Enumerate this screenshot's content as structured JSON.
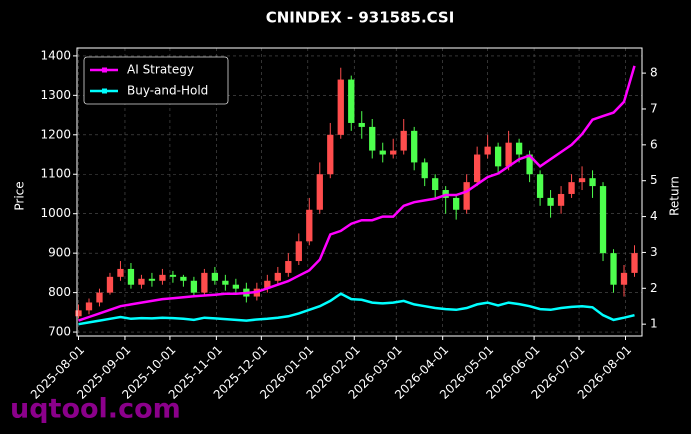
{
  "chart_data": {
    "type": "candlestick",
    "title": "CNINDEX - 931585.CSI",
    "y_label": "Price",
    "y2_label": "Return",
    "x": [
      "2025-08-01",
      "2025-08-08",
      "2025-08-15",
      "2025-08-22",
      "2025-08-29",
      "2025-09-05",
      "2025-09-12",
      "2025-09-19",
      "2025-09-26",
      "2025-10-03",
      "2025-10-10",
      "2025-10-17",
      "2025-10-24",
      "2025-10-31",
      "2025-11-07",
      "2025-11-14",
      "2025-11-21",
      "2025-11-28",
      "2025-12-05",
      "2025-12-12",
      "2025-12-19",
      "2025-12-26",
      "2026-01-02",
      "2026-01-09",
      "2026-01-16",
      "2026-01-23",
      "2026-01-30",
      "2026-02-06",
      "2026-02-13",
      "2026-02-20",
      "2026-02-27",
      "2026-03-06",
      "2026-03-13",
      "2026-03-20",
      "2026-03-27",
      "2026-04-03",
      "2026-04-10",
      "2026-04-17",
      "2026-04-24",
      "2026-05-01",
      "2026-05-08",
      "2026-05-15",
      "2026-05-22",
      "2026-05-29",
      "2026-06-05",
      "2026-06-12",
      "2026-06-19",
      "2026-06-26",
      "2026-07-03",
      "2026-07-10",
      "2026-07-17",
      "2026-07-24",
      "2026-07-31",
      "2026-08-07"
    ],
    "open": [
      740,
      755,
      775,
      800,
      840,
      860,
      820,
      835,
      830,
      845,
      840,
      830,
      800,
      850,
      830,
      820,
      810,
      790,
      810,
      830,
      850,
      880,
      930,
      1010,
      1100,
      1200,
      1340,
      1230,
      1220,
      1160,
      1150,
      1160,
      1210,
      1130,
      1090,
      1060,
      1040,
      1010,
      1080,
      1150,
      1170,
      1120,
      1180,
      1150,
      1100,
      1040,
      1020,
      1050,
      1080,
      1090,
      1070,
      900,
      820,
      850
    ],
    "high": [
      770,
      785,
      810,
      850,
      880,
      875,
      845,
      850,
      860,
      855,
      845,
      840,
      860,
      865,
      845,
      835,
      825,
      825,
      845,
      865,
      900,
      950,
      1040,
      1130,
      1230,
      1370,
      1350,
      1260,
      1240,
      1180,
      1190,
      1240,
      1220,
      1140,
      1100,
      1070,
      1050,
      1100,
      1170,
      1200,
      1180,
      1210,
      1190,
      1160,
      1110,
      1060,
      1070,
      1100,
      1120,
      1110,
      1080,
      910,
      870,
      920
    ],
    "low": [
      735,
      745,
      765,
      795,
      830,
      810,
      810,
      815,
      820,
      825,
      815,
      790,
      795,
      820,
      805,
      795,
      775,
      780,
      800,
      820,
      840,
      870,
      920,
      1000,
      1090,
      1190,
      1210,
      1190,
      1140,
      1130,
      1140,
      1150,
      1110,
      1070,
      1040,
      1000,
      985,
      1000,
      1070,
      1140,
      1100,
      1110,
      1130,
      1080,
      1020,
      990,
      1000,
      1040,
      1060,
      1040,
      880,
      800,
      790,
      840
    ],
    "close": [
      755,
      775,
      800,
      840,
      860,
      820,
      835,
      830,
      845,
      840,
      830,
      800,
      850,
      830,
      820,
      810,
      790,
      810,
      830,
      850,
      880,
      930,
      1010,
      1100,
      1200,
      1340,
      1230,
      1220,
      1160,
      1150,
      1160,
      1210,
      1130,
      1090,
      1060,
      1040,
      1010,
      1080,
      1150,
      1170,
      1120,
      1180,
      1150,
      1100,
      1040,
      1020,
      1050,
      1080,
      1090,
      1070,
      900,
      820,
      850,
      900
    ],
    "up_color": "#ff4d4d",
    "down_color": "#4dff4d",
    "series": [
      {
        "name": "AI Strategy",
        "color": "#ff00ff",
        "axis": "y2",
        "values": [
          1.1,
          1.2,
          1.3,
          1.4,
          1.5,
          1.55,
          1.6,
          1.65,
          1.7,
          1.72,
          1.75,
          1.78,
          1.8,
          1.82,
          1.85,
          1.85,
          1.87,
          1.9,
          2.0,
          2.1,
          2.2,
          2.35,
          2.5,
          2.8,
          3.5,
          3.6,
          3.8,
          3.9,
          3.9,
          4.0,
          4.0,
          4.3,
          4.4,
          4.45,
          4.5,
          4.6,
          4.6,
          4.7,
          4.9,
          5.1,
          5.2,
          5.4,
          5.6,
          5.7,
          5.4,
          5.6,
          5.8,
          6.0,
          6.3,
          6.7,
          6.8,
          6.9,
          7.2,
          8.2
        ]
      },
      {
        "name": "Buy-and-Hold",
        "color": "#00ffff",
        "axis": "y2",
        "values": [
          1.0,
          1.05,
          1.1,
          1.15,
          1.2,
          1.15,
          1.17,
          1.16,
          1.18,
          1.17,
          1.15,
          1.12,
          1.18,
          1.16,
          1.14,
          1.12,
          1.1,
          1.13,
          1.15,
          1.18,
          1.22,
          1.3,
          1.4,
          1.5,
          1.65,
          1.85,
          1.7,
          1.68,
          1.6,
          1.58,
          1.6,
          1.65,
          1.55,
          1.5,
          1.45,
          1.42,
          1.4,
          1.45,
          1.55,
          1.6,
          1.52,
          1.6,
          1.56,
          1.5,
          1.42,
          1.4,
          1.45,
          1.48,
          1.5,
          1.47,
          1.25,
          1.12,
          1.18,
          1.25
        ]
      }
    ],
    "xlim": [
      "2025-07-31",
      "2026-08-12"
    ],
    "xticks": [
      "2025-08-01",
      "2025-09-01",
      "2025-10-01",
      "2025-11-01",
      "2025-12-01",
      "2026-01-01",
      "2026-02-01",
      "2026-03-01",
      "2026-04-01",
      "2026-05-01",
      "2026-06-01",
      "2026-07-01",
      "2026-08-01"
    ],
    "ylim": [
      690,
      1420
    ],
    "yticks": [
      700,
      800,
      900,
      1000,
      1100,
      1200,
      1300,
      1400
    ],
    "y2lim": [
      0.67,
      8.7
    ],
    "y2ticks": [
      1,
      2,
      3,
      4,
      5,
      6,
      7,
      8
    ],
    "grid": true,
    "legend": "upper left"
  },
  "watermark": "uqtool.com"
}
